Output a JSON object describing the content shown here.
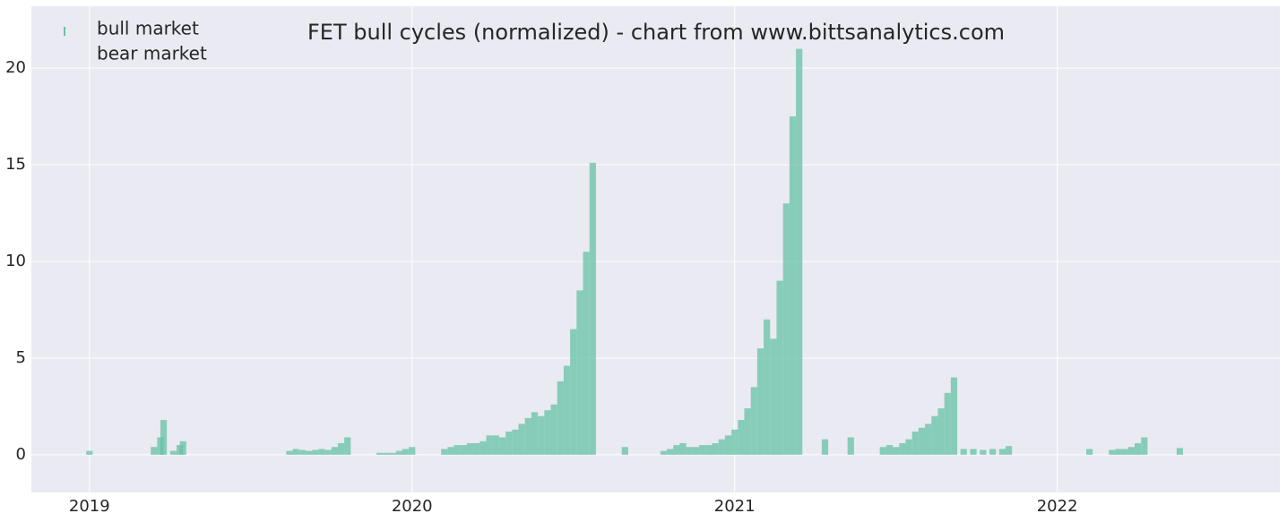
{
  "chart_data": {
    "type": "bar",
    "title": "FET bull cycles (normalized)  - chart from www.bittsanalytics.com",
    "x": [
      2019.0,
      2019.2,
      2019.22,
      2019.23,
      2019.26,
      2019.28,
      2019.29,
      2019.62,
      2019.64,
      2019.66,
      2019.68,
      2019.7,
      2019.72,
      2019.74,
      2019.76,
      2019.78,
      2019.8,
      2019.9,
      2019.92,
      2019.94,
      2019.96,
      2019.98,
      2020.0,
      2020.1,
      2020.12,
      2020.14,
      2020.16,
      2020.18,
      2020.2,
      2020.22,
      2020.24,
      2020.26,
      2020.28,
      2020.3,
      2020.32,
      2020.34,
      2020.36,
      2020.38,
      2020.4,
      2020.42,
      2020.44,
      2020.46,
      2020.48,
      2020.5,
      2020.52,
      2020.54,
      2020.56,
      2020.66,
      2020.78,
      2020.8,
      2020.82,
      2020.84,
      2020.86,
      2020.88,
      2020.9,
      2020.92,
      2020.94,
      2020.96,
      2020.98,
      2021.0,
      2021.02,
      2021.04,
      2021.06,
      2021.08,
      2021.1,
      2021.12,
      2021.14,
      2021.16,
      2021.18,
      2021.2,
      2021.28,
      2021.36,
      2021.46,
      2021.48,
      2021.5,
      2021.52,
      2021.54,
      2021.56,
      2021.58,
      2021.6,
      2021.62,
      2021.64,
      2021.66,
      2021.68,
      2021.71,
      2021.74,
      2021.77,
      2021.8,
      2021.83,
      2021.85,
      2022.1,
      2022.17,
      2022.19,
      2022.21,
      2022.23,
      2022.25,
      2022.27,
      2022.38
    ],
    "series": [
      {
        "name": "bull market",
        "color": "#66c2a5",
        "values": [
          0.2,
          0.4,
          0.9,
          1.8,
          0.2,
          0.5,
          0.7,
          0.2,
          0.3,
          0.25,
          0.2,
          0.25,
          0.3,
          0.25,
          0.4,
          0.6,
          0.9,
          0.1,
          0.1,
          0.1,
          0.2,
          0.3,
          0.4,
          0.3,
          0.4,
          0.5,
          0.5,
          0.6,
          0.6,
          0.7,
          1.0,
          1.0,
          0.9,
          1.2,
          1.3,
          1.6,
          1.9,
          2.2,
          2.0,
          2.3,
          2.6,
          3.8,
          4.6,
          6.5,
          8.5,
          10.5,
          15.1,
          0.4,
          0.2,
          0.3,
          0.5,
          0.6,
          0.4,
          0.4,
          0.5,
          0.5,
          0.6,
          0.8,
          1.0,
          1.3,
          1.8,
          2.4,
          3.5,
          5.5,
          7.0,
          6.0,
          9.0,
          13.0,
          17.5,
          21.0,
          0.8,
          0.9,
          0.4,
          0.5,
          0.4,
          0.6,
          0.8,
          1.2,
          1.4,
          1.6,
          2.0,
          2.4,
          3.2,
          4.0,
          0.3,
          0.3,
          0.25,
          0.3,
          0.3,
          0.45,
          0.3,
          0.25,
          0.3,
          0.3,
          0.4,
          0.6,
          0.9,
          0.35
        ]
      },
      {
        "name": "bear market",
        "color": "#fc8d62",
        "values": [
          null,
          null,
          null,
          null,
          null,
          null,
          null,
          null,
          null,
          null,
          null,
          null,
          null,
          null,
          null,
          null,
          null,
          null,
          null,
          null,
          null,
          null,
          null,
          null,
          null,
          null,
          null,
          null,
          null,
          null,
          null,
          null,
          null,
          null,
          null,
          null,
          null,
          null,
          null,
          null,
          null,
          null,
          null,
          null,
          null,
          null,
          null,
          null,
          null,
          null,
          null,
          null,
          null,
          null,
          null,
          null,
          null,
          null,
          null,
          null,
          null,
          null,
          null,
          null,
          null,
          null,
          null,
          null,
          null,
          null,
          null,
          null,
          null,
          null,
          null,
          null,
          null,
          null,
          null,
          null,
          null,
          null,
          null,
          null,
          null,
          null,
          null,
          null,
          null,
          null,
          null,
          null,
          null,
          null,
          null,
          null,
          null,
          null
        ]
      }
    ],
    "xlim": [
      2018.82,
      2022.69
    ],
    "xticks": [
      2019,
      2020,
      2021,
      2022
    ],
    "ylim": [
      -1.95,
      23.2
    ],
    "yticks": [
      0,
      5,
      10,
      15,
      20
    ],
    "grid": true,
    "legend": "upper left"
  }
}
